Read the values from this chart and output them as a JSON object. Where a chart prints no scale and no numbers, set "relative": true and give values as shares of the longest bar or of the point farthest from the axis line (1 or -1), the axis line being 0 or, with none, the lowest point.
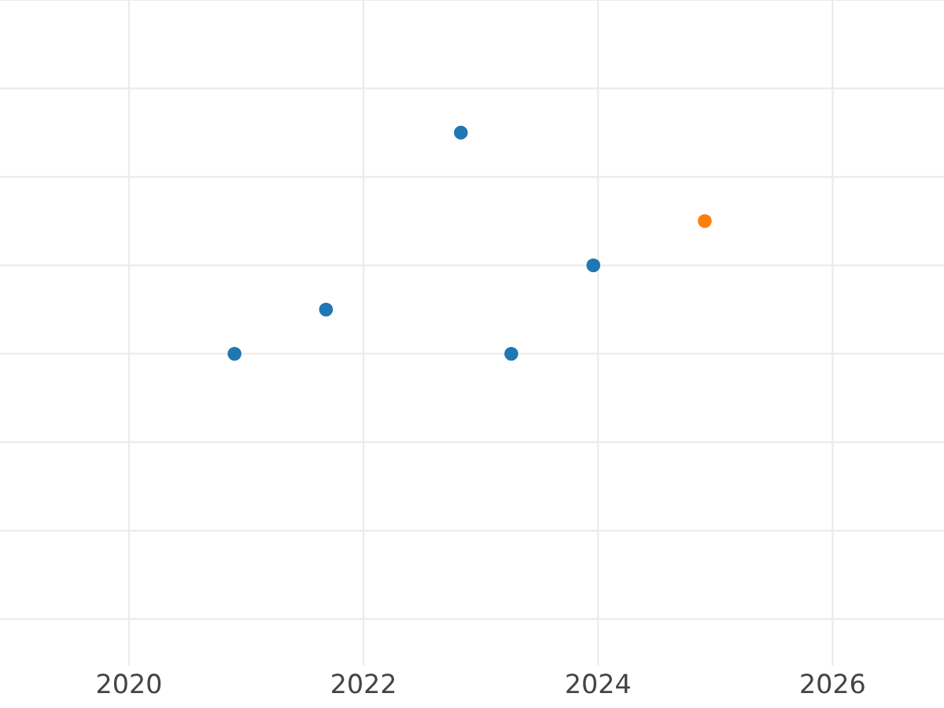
{
  "chart_data": {
    "type": "scatter",
    "relative": true,
    "series": [
      {
        "color": "#1f77b4",
        "x": [
          2020.9,
          2021.68,
          2022.83,
          2023.26,
          2023.96
        ],
        "values": [
          0,
          0.2,
          1,
          0,
          0.4
        ]
      },
      {
        "color": "#ff7f0e",
        "x": [
          2024.91
        ],
        "values": [
          0.6
        ]
      }
    ],
    "xlim": [
      2018.9,
      2026.95
    ],
    "xticks": [
      2020,
      2022,
      2024,
      2026
    ],
    "grid": true,
    "marker": "circle",
    "tick_labels": "x"
  }
}
